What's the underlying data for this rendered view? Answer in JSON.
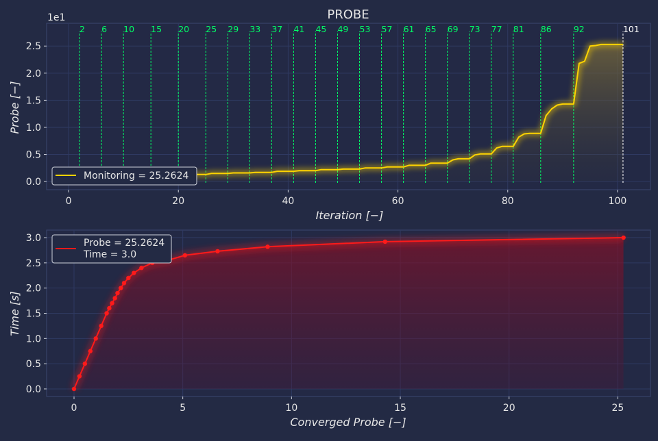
{
  "title": "PROBE",
  "colors": {
    "background": "#232a44",
    "plot_bg": "#232945",
    "grid": "#2f3a62",
    "probe_line": "#ffd400",
    "marker_green": "#00ff66",
    "marker_white": "#ffffff",
    "time_line": "#ff1a1a"
  },
  "chart_data": [
    {
      "type": "line",
      "title": "PROBE",
      "xlabel": "Iteration [−]",
      "ylabel": "Probe [−]",
      "y_offset_text": "1e1",
      "xlim": [
        -4,
        106
      ],
      "ylim": [
        -0.15,
        2.92
      ],
      "x_ticks": [
        0,
        20,
        40,
        60,
        80,
        100
      ],
      "x_tick_labels": [
        "0",
        "20",
        "40",
        "60",
        "80",
        "100"
      ],
      "y_ticks": [
        0,
        0.5,
        1.0,
        1.5,
        2.0,
        2.5
      ],
      "y_tick_labels": [
        "0.0",
        "0.5",
        "1.0",
        "1.5",
        "2.0",
        "2.5"
      ],
      "grid": true,
      "legend_position": "lower-left",
      "legend": [
        "Monitoring = 25.2624"
      ],
      "series": [
        {
          "name": "Monitoring = 25.2624",
          "x": [
            0,
            2,
            3,
            6,
            7,
            10,
            11,
            15,
            16,
            20,
            21,
            25,
            26,
            29,
            30,
            33,
            34,
            37,
            38,
            41,
            42,
            45,
            46,
            49,
            50,
            53,
            54,
            57,
            58,
            61,
            62,
            65,
            66,
            69,
            70,
            71,
            73,
            74,
            75,
            77,
            78,
            79,
            81,
            82,
            83,
            84,
            86,
            87,
            88,
            89,
            90,
            92,
            93,
            94,
            95,
            96,
            97,
            98,
            99,
            100,
            101
          ],
          "y": [
            0.08,
            0.08,
            0.09,
            0.09,
            0.1,
            0.1,
            0.11,
            0.11,
            0.12,
            0.12,
            0.13,
            0.13,
            0.15,
            0.15,
            0.16,
            0.16,
            0.17,
            0.17,
            0.19,
            0.19,
            0.2,
            0.2,
            0.22,
            0.22,
            0.23,
            0.23,
            0.25,
            0.25,
            0.27,
            0.27,
            0.3,
            0.3,
            0.34,
            0.34,
            0.4,
            0.42,
            0.42,
            0.49,
            0.51,
            0.51,
            0.62,
            0.65,
            0.65,
            0.82,
            0.88,
            0.89,
            0.89,
            1.22,
            1.34,
            1.41,
            1.43,
            1.43,
            2.18,
            2.22,
            2.5,
            2.51,
            2.53,
            2.53,
            2.53,
            2.53,
            2.53
          ]
        }
      ],
      "vertical_markers": [
        {
          "x": 2,
          "label": "2"
        },
        {
          "x": 6,
          "label": "6"
        },
        {
          "x": 10,
          "label": "10"
        },
        {
          "x": 15,
          "label": "15"
        },
        {
          "x": 20,
          "label": "20"
        },
        {
          "x": 25,
          "label": "25"
        },
        {
          "x": 29,
          "label": "29"
        },
        {
          "x": 33,
          "label": "33"
        },
        {
          "x": 37,
          "label": "37"
        },
        {
          "x": 41,
          "label": "41"
        },
        {
          "x": 45,
          "label": "45"
        },
        {
          "x": 49,
          "label": "49"
        },
        {
          "x": 53,
          "label": "53"
        },
        {
          "x": 57,
          "label": "57"
        },
        {
          "x": 61,
          "label": "61"
        },
        {
          "x": 65,
          "label": "65"
        },
        {
          "x": 69,
          "label": "69"
        },
        {
          "x": 73,
          "label": "73"
        },
        {
          "x": 77,
          "label": "77"
        },
        {
          "x": 81,
          "label": "81"
        },
        {
          "x": 86,
          "label": "86"
        },
        {
          "x": 92,
          "label": "92"
        },
        {
          "x": 101,
          "label": "101",
          "final": true
        }
      ]
    },
    {
      "type": "line",
      "xlabel": "Converged Probe [−]",
      "ylabel": "Time [s]",
      "xlim": [
        -1.26,
        26.5
      ],
      "ylim": [
        -0.15,
        3.15
      ],
      "x_ticks": [
        0,
        5,
        10,
        15,
        20,
        25
      ],
      "x_tick_labels": [
        "0",
        "5",
        "10",
        "15",
        "20",
        "25"
      ],
      "y_ticks": [
        0,
        0.5,
        1.0,
        1.5,
        2.0,
        2.5,
        3.0
      ],
      "y_tick_labels": [
        "0.0",
        "0.5",
        "1.0",
        "1.5",
        "2.0",
        "2.5",
        "3.0"
      ],
      "grid": true,
      "legend_position": "top-left",
      "legend": [
        "Probe = 25.2624",
        "Time = 3.0"
      ],
      "series": [
        {
          "name": "Probe = 25.2624",
          "x": [
            0,
            0.25,
            0.5,
            0.75,
            1.0,
            1.25,
            1.5,
            1.62,
            1.75,
            1.88,
            2.0,
            2.15,
            2.3,
            2.5,
            2.75,
            3.1,
            3.6,
            4.3,
            5.1,
            6.6,
            8.9,
            14.3,
            25.26
          ],
          "y": [
            0,
            0.25,
            0.5,
            0.75,
            1.0,
            1.25,
            1.5,
            1.6,
            1.7,
            1.8,
            1.9,
            2.0,
            2.1,
            2.2,
            2.3,
            2.4,
            2.5,
            2.55,
            2.65,
            2.73,
            2.82,
            2.92,
            3.0
          ]
        }
      ]
    }
  ]
}
